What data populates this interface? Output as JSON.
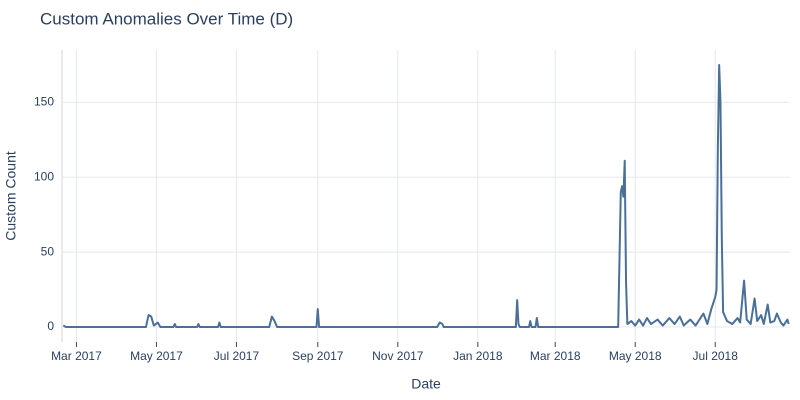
{
  "chart_data": {
    "type": "line",
    "title": "Custom Anomalies Over Time (D)",
    "x_label": "Date",
    "y_label": "Custom Count",
    "color": "#4a6f98",
    "grid": true,
    "x": [
      "2017-02-19",
      "2017-02-21",
      "2017-04-23",
      "2017-04-25",
      "2017-04-27",
      "2017-04-29",
      "2017-05-02",
      "2017-05-04",
      "2017-05-14",
      "2017-05-15",
      "2017-05-16",
      "2017-06-01",
      "2017-06-02",
      "2017-06-03",
      "2017-06-17",
      "2017-06-18",
      "2017-06-19",
      "2017-07-26",
      "2017-07-28",
      "2017-07-30",
      "2017-08-01",
      "2017-08-31",
      "2017-09-01",
      "2017-09-02",
      "2017-12-01",
      "2017-12-03",
      "2017-12-05",
      "2017-12-06",
      "2018-01-30",
      "2018-01-31",
      "2018-02-01",
      "2018-02-02",
      "2018-02-09",
      "2018-02-10",
      "2018-02-11",
      "2018-02-14",
      "2018-02-15",
      "2018-02-16",
      "2018-04-18",
      "2018-04-20",
      "2018-04-21",
      "2018-04-22",
      "2018-04-23",
      "2018-04-24",
      "2018-04-25",
      "2018-04-28",
      "2018-05-01",
      "2018-05-04",
      "2018-05-07",
      "2018-05-10",
      "2018-05-13",
      "2018-05-18",
      "2018-05-22",
      "2018-05-27",
      "2018-05-31",
      "2018-06-04",
      "2018-06-07",
      "2018-06-12",
      "2018-06-16",
      "2018-06-22",
      "2018-06-25",
      "2018-06-28",
      "2018-07-01",
      "2018-07-02",
      "2018-07-03",
      "2018-07-04",
      "2018-07-05",
      "2018-07-06",
      "2018-07-07",
      "2018-07-10",
      "2018-07-14",
      "2018-07-18",
      "2018-07-20",
      "2018-07-23",
      "2018-07-25",
      "2018-07-28",
      "2018-07-31",
      "2018-08-02",
      "2018-08-05",
      "2018-08-07",
      "2018-08-10",
      "2018-08-12",
      "2018-08-15",
      "2018-08-17",
      "2018-08-20",
      "2018-08-22",
      "2018-08-25",
      "2018-08-26"
    ],
    "values": [
      1,
      0,
      0,
      8,
      7,
      1,
      3,
      0,
      0,
      2,
      0,
      0,
      2,
      0,
      0,
      3,
      0,
      0,
      7,
      4,
      0,
      0,
      12,
      0,
      0,
      3,
      2,
      0,
      0,
      18,
      2,
      0,
      0,
      4,
      0,
      0,
      6,
      0,
      0,
      90,
      94,
      87,
      111,
      30,
      2,
      4,
      1,
      5,
      1,
      6,
      2,
      5,
      1,
      6,
      2,
      7,
      1,
      5,
      1,
      9,
      2,
      12,
      20,
      25,
      120,
      175,
      150,
      60,
      10,
      4,
      2,
      6,
      3,
      31,
      5,
      2,
      19,
      4,
      8,
      2,
      15,
      3,
      4,
      9,
      3,
      1,
      5,
      2
    ],
    "xlim": [
      "2017-02-18",
      "2018-08-27"
    ],
    "xticks": [
      {
        "value": "2017-03-01",
        "label": "Mar 2017"
      },
      {
        "value": "2017-05-01",
        "label": "May 2017"
      },
      {
        "value": "2017-07-01",
        "label": "Jul 2017"
      },
      {
        "value": "2017-09-01",
        "label": "Sep 2017"
      },
      {
        "value": "2017-11-01",
        "label": "Nov 2017"
      },
      {
        "value": "2018-01-01",
        "label": "Jan 2018"
      },
      {
        "value": "2018-03-01",
        "label": "Mar 2018"
      },
      {
        "value": "2018-05-01",
        "label": "May 2018"
      },
      {
        "value": "2018-07-01",
        "label": "Jul 2018"
      }
    ],
    "ylim": [
      -10,
      185
    ],
    "yticks": [
      0,
      50,
      100,
      150
    ]
  }
}
